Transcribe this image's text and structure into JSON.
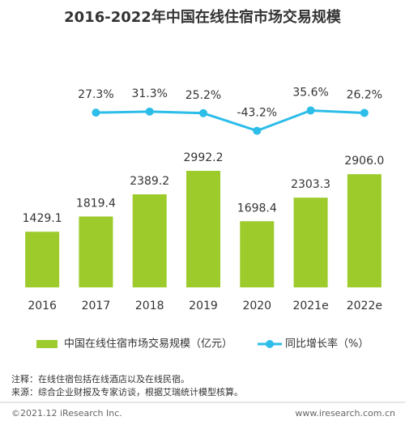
{
  "chart_data": {
    "type": "bar",
    "title": "2016-2022年中国在线住宿市场交易规模",
    "categories": [
      "2016",
      "2017",
      "2018",
      "2019",
      "2020",
      "2021e",
      "2022e"
    ],
    "series": [
      {
        "name": "中国在线住宿市场交易规模（亿元）",
        "color": "#9ccb2b",
        "values": [
          1429.1,
          1819.4,
          2389.2,
          2992.2,
          1698.4,
          2303.3,
          2906.0
        ],
        "value_labels": [
          "1429.1",
          "1819.4",
          "2389.2",
          "2992.2",
          "1698.4",
          "2303.3",
          "2906.0"
        ]
      },
      {
        "name": "同比增长率（%）",
        "color": "#2cbde9",
        "type": "line",
        "axis": "y2",
        "values": [
          null,
          27.3,
          31.3,
          25.2,
          -43.2,
          35.6,
          26.2
        ],
        "value_labels": [
          null,
          "27.3%",
          "31.3%",
          "25.2%",
          "-43.2%",
          "35.6%",
          "26.2%"
        ]
      }
    ],
    "ylim": [
      0,
      5300
    ],
    "y2lim": [
      -650,
      150
    ],
    "notes": [
      "注释：在线住宿包括在线酒店以及在线民宿。",
      "来源：综合企业财报及专家访谈，根据艾瑞统计模型核算。"
    ],
    "footer_left": "©2021.12 iResearch Inc.",
    "footer_right": "www.iresearch.com.cn"
  }
}
